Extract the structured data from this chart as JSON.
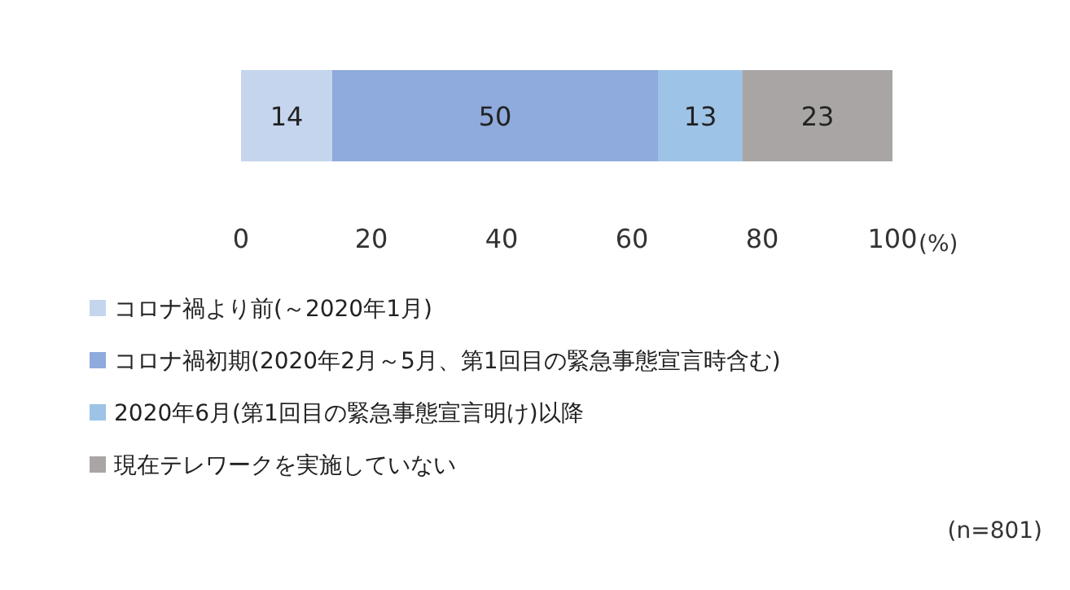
{
  "chart_data": {
    "type": "bar",
    "orientation": "horizontal",
    "stacked": true,
    "categories": [
      null
    ],
    "series": [
      {
        "name": "コロナ禍より前(～2020年1月)",
        "color": "#c5d5ee",
        "values": [
          14
        ]
      },
      {
        "name": "コロナ禍初期(2020年2月～5月、第1回目の緊急事態宣言時含む)",
        "color": "#8faadc",
        "values": [
          50
        ]
      },
      {
        "name": "2020年6月(第1回目の緊急事態宣言明け)以降",
        "color": "#9dc3e6",
        "values": [
          13
        ]
      },
      {
        "name": "現在テレワークを実施していない",
        "color": "#aaa5a5",
        "values": [
          23
        ]
      }
    ],
    "xlim": [
      0,
      100
    ],
    "xticks": [
      0,
      20,
      40,
      60,
      80,
      100
    ],
    "xlabel": "(%)",
    "data_labels": true,
    "legend": "bottom",
    "grid": false,
    "annotations": [
      "(n=801)"
    ]
  }
}
